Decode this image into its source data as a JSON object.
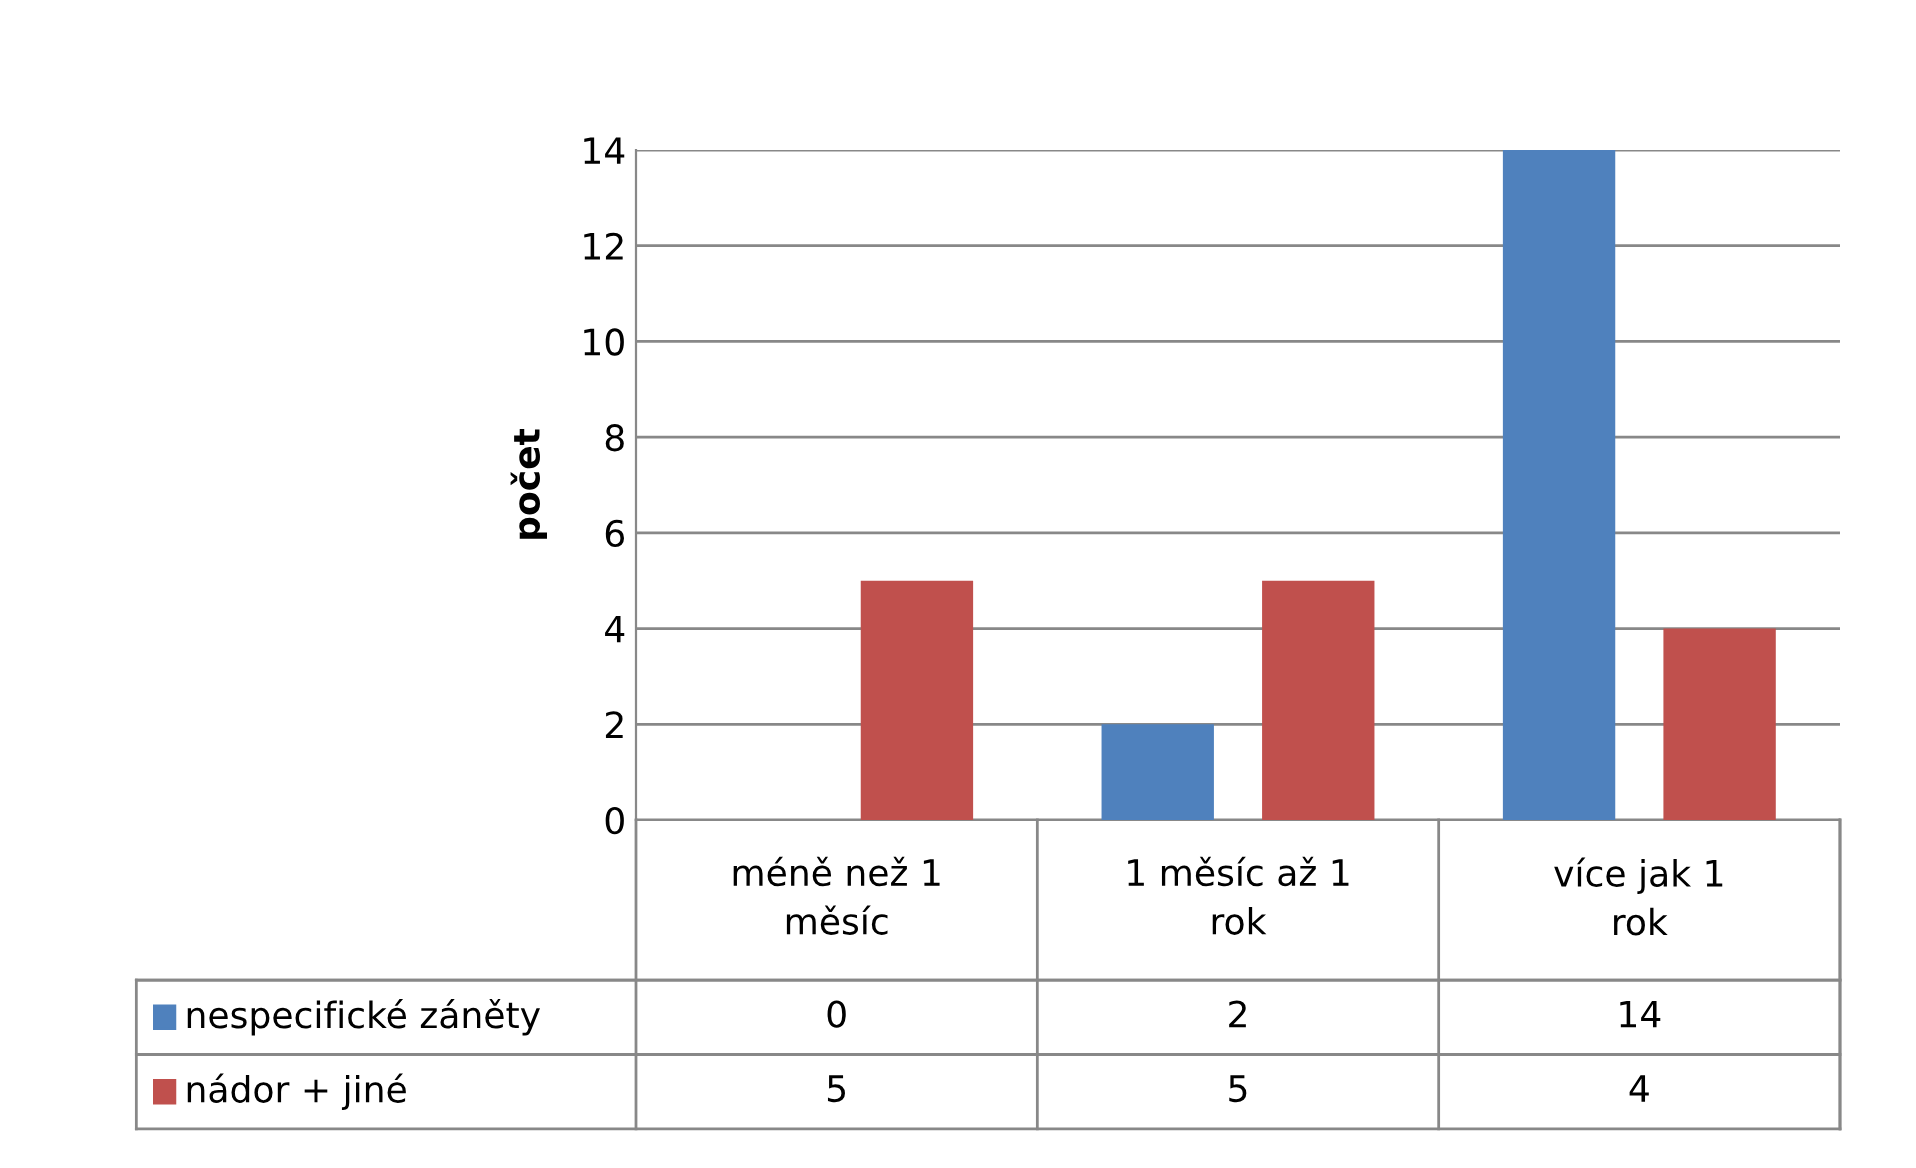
{
  "chart_data": {
    "type": "bar",
    "ylabel": "počet",
    "categories": [
      "méně než 1\nměsíc",
      "1 měsíc až 1\nrok",
      "více jak 1\nrok"
    ],
    "series": [
      {
        "name": "nespecifické záněty",
        "color": "#4f81bd",
        "values": [
          0,
          2,
          14
        ]
      },
      {
        "name": "nádor + jiné",
        "color": "#c0504d",
        "values": [
          5,
          5,
          4
        ]
      }
    ],
    "ylim": [
      0,
      14
    ],
    "yticks": [
      0,
      2,
      4,
      6,
      8,
      10,
      12,
      14
    ],
    "grid": "y",
    "legend": "bottom",
    "data_labels": true
  }
}
